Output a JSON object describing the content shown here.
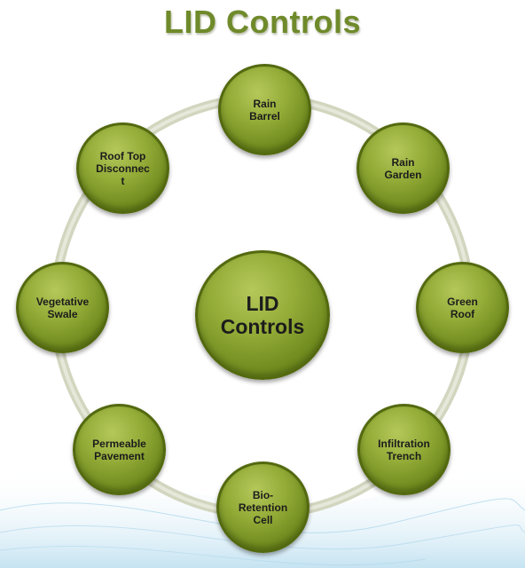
{
  "title": "LID Controls",
  "center": {
    "label": "LID\nControls"
  },
  "nodes": [
    {
      "id": "rain-barrel",
      "label": "Rain\nBarrel"
    },
    {
      "id": "rain-garden",
      "label": "Rain\nGarden"
    },
    {
      "id": "green-roof",
      "label": "Green\nRoof"
    },
    {
      "id": "infiltration-trench",
      "label": "Infiltration\nTrench"
    },
    {
      "id": "bio-retention-cell",
      "label": "Bio-\nRetention\nCell"
    },
    {
      "id": "permeable-pavement",
      "label": "Permeable\nPavement"
    },
    {
      "id": "vegetative-swale",
      "label": "Vegetative\nSwale"
    },
    {
      "id": "roof-top-disconnect",
      "label": "Roof Top\nDisconnec\nt"
    }
  ],
  "colors": {
    "title": "#6f8a2a",
    "node_fill": "#8ea635",
    "node_border": "#53690f",
    "ring": "#d2d6bf",
    "wave": "#bfe0f0"
  }
}
